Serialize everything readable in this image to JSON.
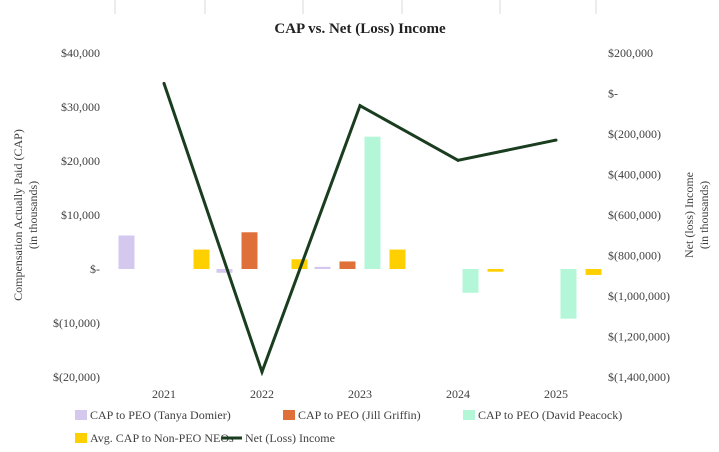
{
  "chart_data": {
    "type": "bar",
    "title": "CAP vs. Net (Loss) Income",
    "categories": [
      "2021",
      "2022",
      "2023",
      "2024",
      "2025"
    ],
    "ylabel": "Compensation Actually Paid (CAP)\n(in thousands)",
    "y2label": "Net (loss) Income\n(in thousands)",
    "ylim": [
      -20000,
      40000
    ],
    "y2lim": [
      -1400000,
      200000
    ],
    "yticks": [
      {
        "value": 40000,
        "label": "$40,000"
      },
      {
        "value": 30000,
        "label": "$30,000"
      },
      {
        "value": 20000,
        "label": "$20,000"
      },
      {
        "value": 10000,
        "label": "$10,000"
      },
      {
        "value": 0,
        "label": "$-"
      },
      {
        "value": -10000,
        "label": "$(10,000)"
      },
      {
        "value": -20000,
        "label": "$(20,000)"
      }
    ],
    "y2ticks": [
      {
        "value": 200000,
        "label": "$200,000"
      },
      {
        "value": 0,
        "label": "$-"
      },
      {
        "value": -200000,
        "label": "$(200,000)"
      },
      {
        "value": -400000,
        "label": "$(400,000)"
      },
      {
        "value": -600000,
        "label": "$(600,000)"
      },
      {
        "value": -800000,
        "label": "$(800,000)"
      },
      {
        "value": -1000000,
        "label": "$(1,000,000)"
      },
      {
        "value": -1200000,
        "label": "$(1,200,000)"
      },
      {
        "value": -1400000,
        "label": "$(1,400,000)"
      }
    ],
    "series": [
      {
        "name": "CAP to PEO (Tanya Domier)",
        "kind": "bar",
        "axis": "left",
        "color": "#d5c8ef",
        "values": [
          6200,
          -700,
          400,
          null,
          null
        ]
      },
      {
        "name": "CAP to PEO (Jill Griffin)",
        "kind": "bar",
        "axis": "left",
        "color": "#e0703a",
        "values": [
          null,
          6800,
          1400,
          null,
          null
        ]
      },
      {
        "name": "CAP to PEO (David Peacock)",
        "kind": "bar",
        "axis": "left",
        "color": "#b3f7d8",
        "values": [
          null,
          null,
          24500,
          -4400,
          -9200
        ]
      },
      {
        "name": "Avg. CAP to Non-PEO NEOs",
        "kind": "bar",
        "axis": "left",
        "color": "#ffd000",
        "values": [
          3600,
          1800,
          3600,
          -500,
          -1100
        ]
      },
      {
        "name": "Net (Loss) Income",
        "kind": "line",
        "axis": "right",
        "color": "#1a3d1f",
        "values": [
          50000,
          -1375000,
          -60000,
          -330000,
          -230000
        ]
      }
    ],
    "legend_position": "bottom"
  }
}
